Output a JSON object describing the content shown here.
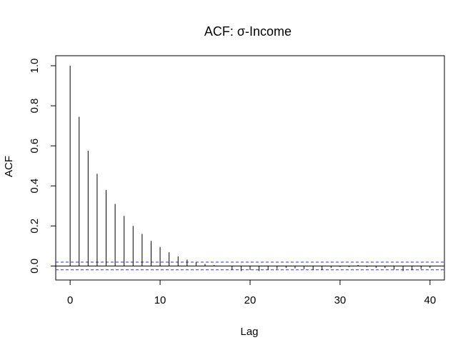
{
  "chart_data": {
    "type": "bar",
    "title": "ACF: σ-Income",
    "xlabel": "Lag",
    "ylabel": "ACF",
    "xlim": [
      -1.6,
      41.6
    ],
    "ylim": [
      -0.07,
      1.05
    ],
    "xticks": [
      0,
      10,
      20,
      30,
      40
    ],
    "yticks": [
      0.0,
      0.2,
      0.4,
      0.6,
      0.8,
      1.0
    ],
    "ytick_labels": [
      "0.0",
      "0.2",
      "0.4",
      "0.6",
      "0.8",
      "1.0"
    ],
    "lags": [
      0,
      1,
      2,
      3,
      4,
      5,
      6,
      7,
      8,
      9,
      10,
      11,
      12,
      13,
      14,
      15,
      16,
      17,
      18,
      19,
      20,
      21,
      22,
      23,
      24,
      25,
      26,
      27,
      28,
      29,
      30,
      31,
      32,
      33,
      34,
      35,
      36,
      37,
      38,
      39,
      40
    ],
    "values": [
      1.0,
      0.745,
      0.575,
      0.46,
      0.38,
      0.31,
      0.25,
      0.2,
      0.16,
      0.125,
      0.095,
      0.068,
      0.048,
      0.032,
      0.018,
      0.01,
      0.005,
      0.0,
      -0.018,
      -0.025,
      -0.02,
      -0.025,
      -0.02,
      -0.015,
      -0.01,
      -0.012,
      -0.015,
      -0.02,
      -0.02,
      -0.01,
      -0.005,
      -0.005,
      0.005,
      -0.005,
      -0.01,
      -0.01,
      -0.018,
      -0.025,
      -0.02,
      -0.015,
      -0.01
    ],
    "confidence_bound": 0.019,
    "colors": {
      "bars": "#000000",
      "confidence": "#3333cc",
      "zero_line": "#000000",
      "frame": "#000000"
    },
    "grid": false,
    "legend": "none"
  }
}
